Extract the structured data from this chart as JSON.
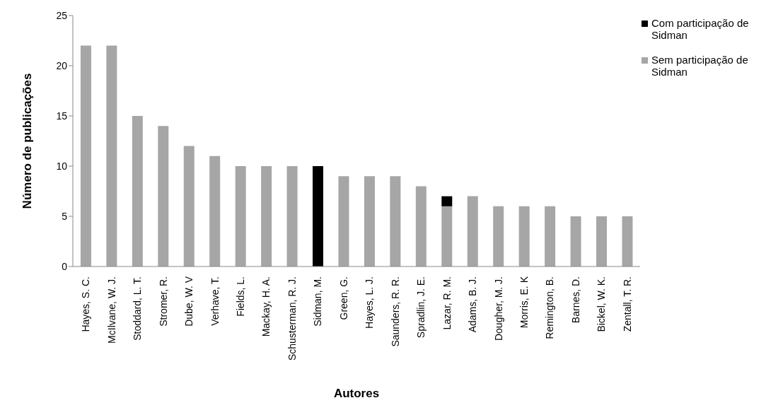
{
  "chart_data": {
    "type": "bar",
    "stacked": true,
    "xlabel": "Autores",
    "ylabel": "Número de publicações",
    "categories": [
      "Hayes, S. C.",
      "McIlvane, W. J.",
      "Stoddard, L. T.",
      "Stromer, R.",
      "Dube, W. V",
      "Verhave, T.",
      "Fields, L.",
      "Mackay, H. A.",
      "Schusterman, R. J.",
      "Sidman, M.",
      "Green, G.",
      "Hayes, L. J.",
      "Saunders, R. R.",
      "Spradlin, J. E.",
      "Lazar, R. M.",
      "Adams, B. J.",
      "Dougher, M. J.",
      "Morris, E. K",
      "Remington, B.",
      "Barnes, D.",
      "Bickel, W. K.",
      "Zentall, T. R."
    ],
    "series": [
      {
        "name": "Sem participação de Sidman",
        "color": "#a6a6a6",
        "values": [
          22,
          22,
          15,
          14,
          12,
          11,
          10,
          10,
          10,
          null,
          9,
          9,
          9,
          8,
          6,
          7,
          6,
          6,
          6,
          5,
          5,
          5
        ]
      },
      {
        "name": "Com participação de Sidman",
        "color": "#000000",
        "values": [
          null,
          null,
          null,
          null,
          null,
          null,
          null,
          null,
          null,
          10,
          null,
          null,
          null,
          null,
          1,
          null,
          null,
          null,
          null,
          null,
          null,
          null
        ]
      }
    ],
    "ylim": [
      0,
      25
    ],
    "yticks": [
      0,
      5,
      10,
      15,
      20,
      25
    ],
    "legend": "top right"
  }
}
